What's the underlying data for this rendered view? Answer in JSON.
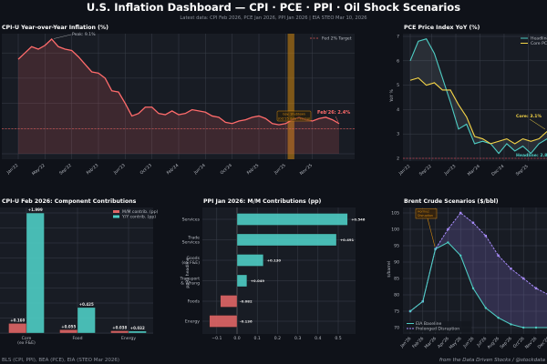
{
  "header": {
    "title": "U.S. Inflation Dashboard — CPI · PCE · PPI · Oil Shock Scenarios",
    "subtitle": "Latest data: CPI Feb 2026, PCE Jan 2026, PPI Jan 2026  |  EIA STEO Mar 10, 2026"
  },
  "footer": {
    "sources": "BLS (CPI, PPI), BEA (PCE), EIA (STEO Mar 2026)",
    "credit": "from the Data Driven Stocks / @stockdata"
  },
  "colors": {
    "cpi": "#ff6b6b",
    "teal": "#4ecdc4",
    "yellow": "#f5d547",
    "purple": "#a78bfa",
    "red_bar": "#e06666",
    "amber": "#d4880f"
  },
  "chart_data": [
    {
      "id": "cpi",
      "type": "area",
      "title": "CPI-U Year-over-Year Inflation (%)",
      "ylim": [
        0,
        9.5
      ],
      "yticks": [
        0,
        2,
        4,
        6,
        8
      ],
      "xtick_labels": [
        "Jan'22",
        "May'22",
        "Sep'22",
        "Feb'23",
        "Jun'23",
        "Oct'23",
        "Feb'24",
        "Jun'24",
        "Oct'24",
        "Feb'25",
        "Jun'25",
        "Nov'25"
      ],
      "values": [
        7.5,
        8.0,
        8.5,
        8.3,
        8.6,
        9.1,
        8.5,
        8.3,
        8.2,
        7.7,
        7.1,
        6.5,
        6.4,
        6.0,
        5.0,
        4.9,
        4.0,
        3.0,
        3.2,
        3.7,
        3.7,
        3.2,
        3.1,
        3.4,
        3.1,
        3.2,
        3.5,
        3.4,
        3.3,
        3.0,
        2.9,
        2.5,
        2.4,
        2.6,
        2.7,
        2.9,
        3.0,
        2.8,
        2.4,
        2.3,
        2.4,
        2.7,
        2.9,
        2.7,
        2.6,
        2.8,
        2.9,
        2.7,
        2.4
      ],
      "target": 2,
      "legend": "Fed 2% Target",
      "peak_label": "Peak: 9.1%",
      "latest_label": "Feb'26: 2.4%",
      "shutdown_label": [
        "Gov. Shutdown",
        "(Oct'25 data missing)"
      ],
      "shutdown_index": [
        40.3,
        41.3
      ]
    },
    {
      "id": "pce",
      "type": "line",
      "title": "PCE Price Index YoY (%)",
      "ylabel": "YoY %",
      "ylim": [
        2,
        7
      ],
      "yticks": [
        2,
        3,
        4,
        5,
        6,
        7
      ],
      "xticks": [
        {
          "label": "Jan'22",
          "m": 0
        },
        {
          "label": "Sep'22",
          "m": 8
        },
        {
          "label": "Jun'23",
          "m": 17
        },
        {
          "label": "Mar'24",
          "m": 26
        },
        {
          "label": "Dec'24",
          "m": 35
        },
        {
          "label": "Sep'25",
          "m": 44
        }
      ],
      "step_months": 3,
      "series": [
        {
          "name": "Headline PCE",
          "values": [
            6.0,
            6.8,
            6.9,
            6.3,
            5.3,
            4.3,
            3.2,
            3.4,
            2.6,
            2.7,
            2.6,
            2.2,
            2.6,
            2.3,
            2.5,
            2.2,
            2.6,
            2.8
          ]
        },
        {
          "name": "Core PCE",
          "values": [
            5.2,
            5.3,
            5.0,
            5.1,
            4.8,
            4.8,
            4.2,
            3.7,
            2.9,
            2.8,
            2.6,
            2.7,
            2.8,
            2.6,
            2.8,
            2.7,
            2.8,
            3.1
          ]
        }
      ],
      "target": 2,
      "core_label": "Core: 3.1%",
      "headline_label": "Headline: 2.8%"
    },
    {
      "id": "cpi_components",
      "type": "bar",
      "title": "CPI-U Feb 2026: Component Contributions",
      "categories": [
        [
          "Core",
          "(ex F&E)"
        ],
        [
          "Food"
        ],
        [
          "Energy"
        ]
      ],
      "series": [
        {
          "name": "M/M contrib. (pp)",
          "values": [
            0.16,
            0.055,
            0.038
          ],
          "labels": [
            "+0.160",
            "+0.055",
            "+0.038"
          ]
        },
        {
          "name": "Y/Y contrib. (pp)",
          "values": [
            1.999,
            0.425,
            0.032
          ],
          "labels": [
            "+1.999",
            "+0.425",
            "+0.032"
          ]
        }
      ],
      "ylim": [
        0,
        2.05
      ]
    },
    {
      "id": "ppi",
      "type": "bar",
      "orientation": "horizontal",
      "title": "PPI Jan 2026: M/M Contributions (pp)",
      "ylabel": "pp to headline",
      "categories": [
        [
          "Services"
        ],
        [
          "Trade",
          "Services"
        ],
        [
          "Goods",
          "(ex F&E)"
        ],
        [
          "Transport",
          "& Whsng"
        ],
        [
          "Foods"
        ],
        [
          "Energy"
        ]
      ],
      "values": [
        0.546,
        0.491,
        0.13,
        0.049,
        -0.082,
        -0.136
      ],
      "labels": [
        "+0.546",
        "+0.491",
        "+0.130",
        "+0.049",
        "-0.082",
        "-0.136"
      ],
      "xlim": [
        -0.17,
        0.58
      ],
      "xticks": [
        {
          "v": -0.1,
          "label": "−0.1"
        },
        {
          "v": 0,
          "label": "0.0"
        },
        {
          "v": 0.1,
          "label": "0.1"
        },
        {
          "v": 0.2,
          "label": "0.2"
        },
        {
          "v": 0.3,
          "label": "0.3"
        },
        {
          "v": 0.4,
          "label": "0.4"
        },
        {
          "v": 0.5,
          "label": "0.5"
        }
      ]
    },
    {
      "id": "brent",
      "type": "line",
      "title": "Brent Crude Scenarios ($/bbl)",
      "ylabel": "$/barrel",
      "ylim": [
        68.5,
        106.5
      ],
      "yticks": [
        70,
        75,
        80,
        85,
        90,
        95,
        100,
        105
      ],
      "categories": [
        "Jan'26",
        "Feb'26",
        "Mar'26",
        "Apr'26",
        "May'26",
        "Jun'26",
        "Jul'26",
        "Aug'26",
        "Sep'26",
        "Oct'26",
        "Nov'26",
        "Dec'26"
      ],
      "series": [
        {
          "name": "EIA Baseline",
          "values": [
            75,
            78,
            94,
            96,
            92,
            82,
            76,
            73,
            71,
            70,
            70,
            70
          ]
        },
        {
          "name": "Prolonged Disruption",
          "values": [
            75,
            78,
            94,
            100,
            105,
            102,
            98,
            92,
            88,
            85,
            82,
            80
          ]
        }
      ],
      "annotation": [
        "Hormuz",
        "Disruption"
      ]
    }
  ]
}
